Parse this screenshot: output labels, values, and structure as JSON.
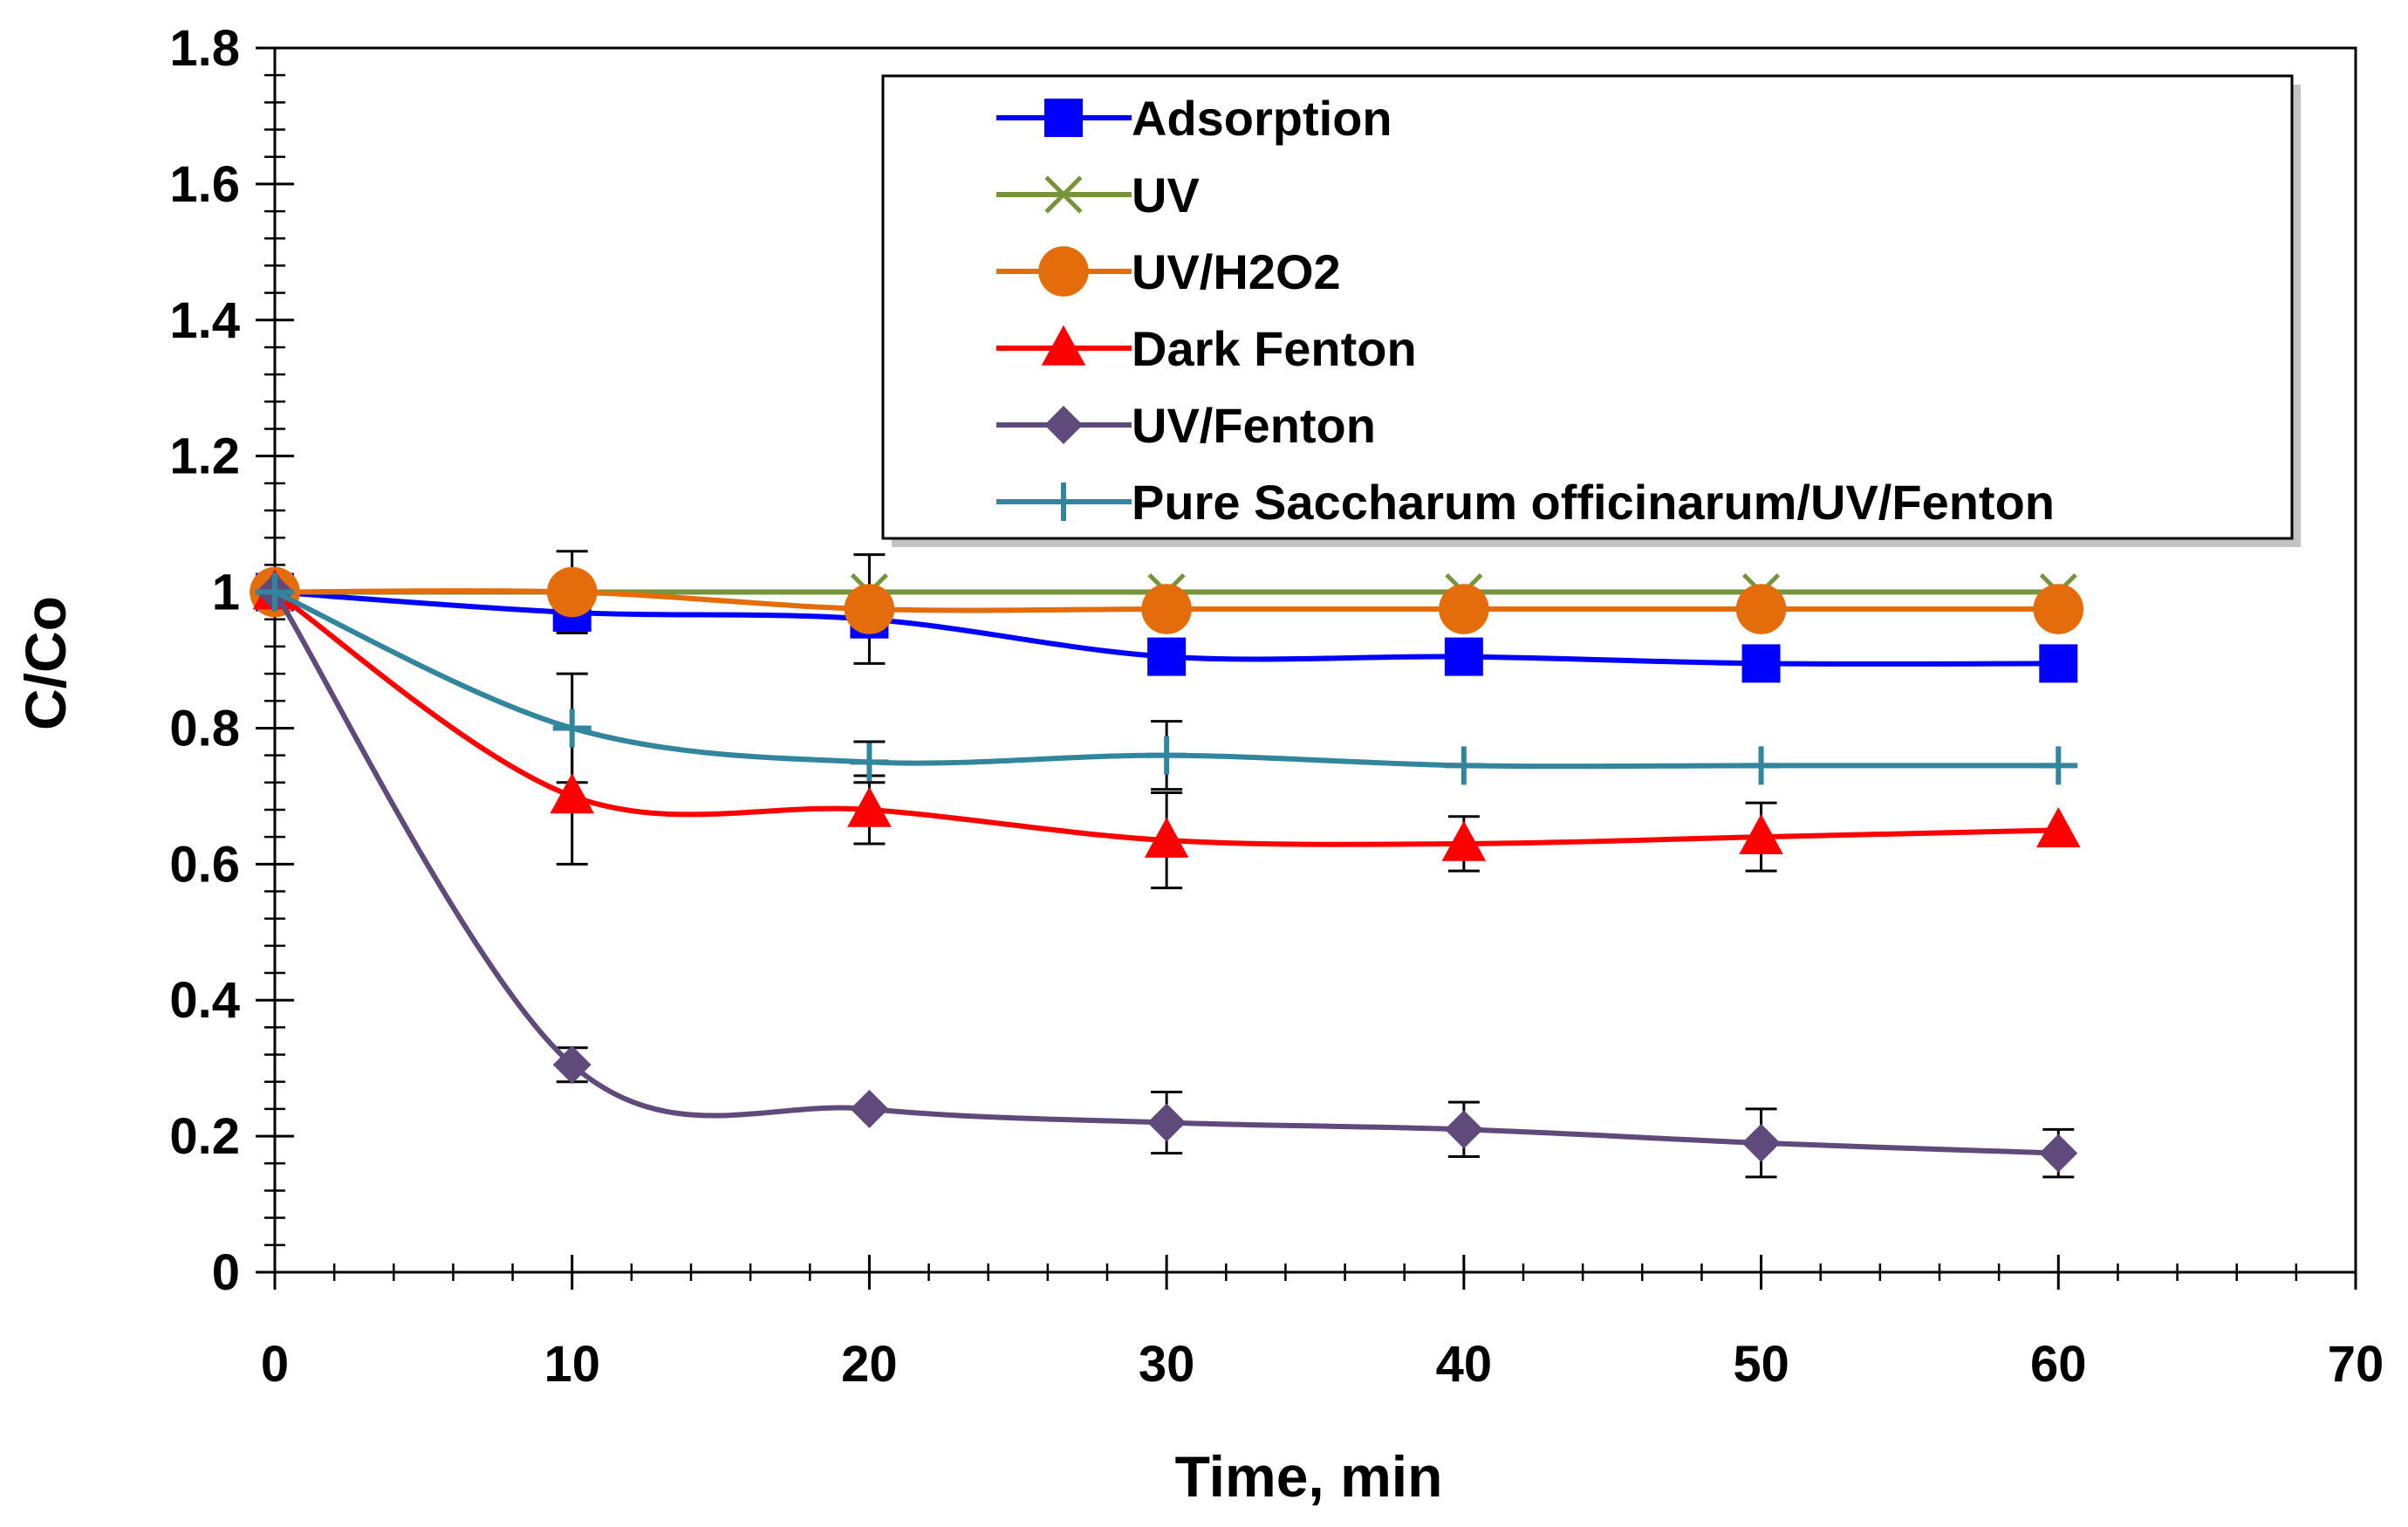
{
  "chart_data": {
    "type": "line",
    "title": "",
    "xlabel": "Time, min",
    "ylabel": "C/Co",
    "xlim": [
      0,
      70
    ],
    "ylim": [
      0,
      1.8
    ],
    "xticks": [
      0,
      10,
      20,
      30,
      40,
      50,
      60,
      70
    ],
    "xtick_labels": [
      "0",
      "10",
      "20",
      "30",
      "40",
      "50",
      "60",
      "70"
    ],
    "yticks": [
      0,
      0.2,
      0.4,
      0.6,
      0.8,
      1,
      1.2,
      1.4,
      1.6,
      1.8
    ],
    "ytick_labels": [
      "0",
      "0.2",
      "0.4",
      "0.6",
      "0.8",
      "1",
      "1.2",
      "1.4",
      "1.6",
      "1.8"
    ],
    "grid": false,
    "legend_position": "top-right",
    "x": [
      0,
      10,
      20,
      30,
      40,
      50,
      60
    ],
    "series": [
      {
        "name": "Adsorption",
        "color": "#0000ff",
        "marker": "square",
        "values": [
          1.0,
          0.97,
          0.96,
          0.905,
          0.905,
          0.895,
          0.895
        ],
        "errors": [
          0.0,
          0.0,
          0.0,
          0.0,
          0.0,
          0.0,
          0.0
        ]
      },
      {
        "name": "UV",
        "color": "#77933c",
        "marker": "x",
        "values": [
          1.0,
          1.0,
          1.0,
          1.0,
          1.0,
          1.0,
          1.0
        ],
        "errors": [
          0.0,
          0.0,
          0.0,
          0.0,
          0.0,
          0.0,
          0.0
        ]
      },
      {
        "name": "UV/H2O2",
        "color": "#e46c0a",
        "marker": "circle",
        "values": [
          1.0,
          1.0,
          0.975,
          0.975,
          0.975,
          0.975,
          0.975
        ],
        "errors": [
          0.0,
          0.06,
          0.08,
          0.0,
          0.0,
          0.0,
          0.0
        ]
      },
      {
        "name": "Dark Fenton",
        "color": "#ff0000",
        "marker": "triangle",
        "values": [
          1.0,
          0.7,
          0.68,
          0.635,
          0.63,
          0.64,
          0.65
        ],
        "errors": [
          0.0,
          0.1,
          0.05,
          0.07,
          0.04,
          0.05,
          0.0
        ]
      },
      {
        "name": "UV/Fenton",
        "color": "#604a7b",
        "marker": "diamond",
        "values": [
          1.0,
          0.305,
          0.24,
          0.22,
          0.21,
          0.19,
          0.175
        ],
        "errors": [
          0.0,
          0.025,
          0.0,
          0.045,
          0.04,
          0.05,
          0.035
        ]
      },
      {
        "name": "Pure Saccharum officinarum/UV/Fenton",
        "color": "#31859c",
        "marker": "plus",
        "values": [
          1.0,
          0.8,
          0.75,
          0.76,
          0.745,
          0.745,
          0.745
        ],
        "errors": [
          0.0,
          0.08,
          0.03,
          0.05,
          0.0,
          0.0,
          0.0
        ]
      }
    ]
  }
}
